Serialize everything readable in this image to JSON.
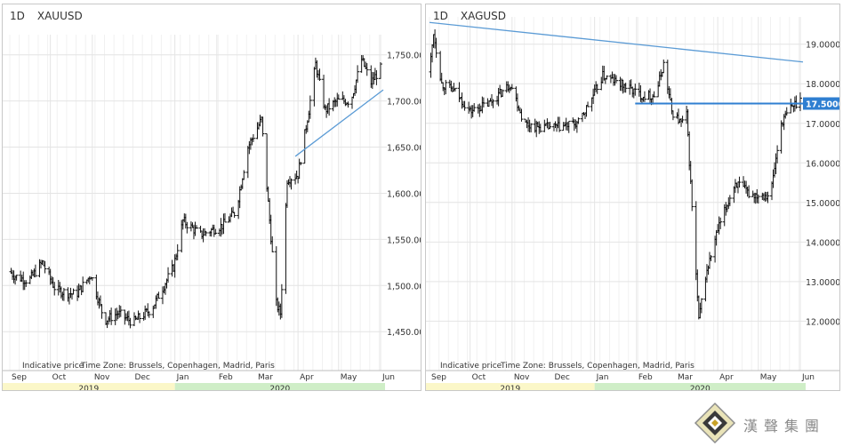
{
  "brand": {
    "name": "漢聲集團",
    "logo_icon": "diamond-logo-icon"
  },
  "chart_data": [
    {
      "type": "ohlc",
      "timeframe": "1D",
      "symbol": "XAUUSD",
      "footnote_price": "Indicative price",
      "footnote_tz": "Time Zone: Brussels, Copenhagen, Madrid, Paris",
      "ylim": [
        1430,
        1768
      ],
      "yticks": [
        1450,
        1500,
        1550,
        1600,
        1650,
        1700,
        1750
      ],
      "ytick_labels": [
        "1,450.00",
        "1,500.00",
        "1,550.00",
        "1,600.00",
        "1,650.00",
        "1,700.00",
        "1,750.00"
      ],
      "months": [
        "Sep",
        "Oct",
        "Nov",
        "Dec",
        "Jan",
        "Feb",
        "Mar",
        "Apr",
        "May",
        "Jun"
      ],
      "years": [
        "2019",
        "2020"
      ],
      "year_colors": [
        "#fbf7c8",
        "#cfeec7"
      ],
      "grid": true,
      "x_start": "2019-09-01",
      "x_end": "2020-06-03",
      "anchors": [
        [
          "2019-09-01",
          1515
        ],
        [
          "2019-09-05",
          1510
        ],
        [
          "2019-09-15",
          1505
        ],
        [
          "2019-09-25",
          1525
        ],
        [
          "2019-10-05",
          1495
        ],
        [
          "2019-10-20",
          1490
        ],
        [
          "2019-10-31",
          1512
        ],
        [
          "2019-11-10",
          1462
        ],
        [
          "2019-11-20",
          1470
        ],
        [
          "2019-12-01",
          1460
        ],
        [
          "2019-12-15",
          1475
        ],
        [
          "2019-12-31",
          1520
        ],
        [
          "2020-01-07",
          1570
        ],
        [
          "2020-01-20",
          1555
        ],
        [
          "2020-02-05",
          1565
        ],
        [
          "2020-02-15",
          1580
        ],
        [
          "2020-02-24",
          1650
        ],
        [
          "2020-03-05",
          1680
        ],
        [
          "2020-03-16",
          1480
        ],
        [
          "2020-03-19",
          1470
        ],
        [
          "2020-03-24",
          1615
        ],
        [
          "2020-04-01",
          1620
        ],
        [
          "2020-04-09",
          1690
        ],
        [
          "2020-04-14",
          1740
        ],
        [
          "2020-04-21",
          1690
        ],
        [
          "2020-04-30",
          1700
        ],
        [
          "2020-05-10",
          1700
        ],
        [
          "2020-05-18",
          1745
        ],
        [
          "2020-05-25",
          1720
        ],
        [
          "2020-06-01",
          1735
        ]
      ],
      "trendlines": [
        {
          "start": [
            "2020-03-30",
            1640
          ],
          "end": [
            "2020-06-03",
            1712
          ],
          "color": "#5b9bd5"
        }
      ]
    },
    {
      "type": "ohlc",
      "timeframe": "1D",
      "symbol": "XAGUSD",
      "footnote_price": "Indicative price",
      "footnote_tz": "Time Zone: Brussels, Copenhagen, Madrid, Paris",
      "ylim": [
        11.2,
        19.6
      ],
      "yticks": [
        12,
        13,
        14,
        15,
        16,
        17,
        18,
        19
      ],
      "ytick_labels": [
        "12.0000",
        "13.0000",
        "14.0000",
        "15.0000",
        "16.0000",
        "17.0000",
        "18.0000",
        "19.0000"
      ],
      "price_label": "17.5000",
      "price_level": 17.5,
      "months": [
        "Sep",
        "Oct",
        "Nov",
        "Dec",
        "Jan",
        "Feb",
        "Mar",
        "Apr",
        "May",
        "Jun"
      ],
      "years": [
        "2019",
        "2020"
      ],
      "year_colors": [
        "#fbf7c8",
        "#cfeec7"
      ],
      "grid": true,
      "x_start": "2019-09-01",
      "x_end": "2020-06-03",
      "anchors": [
        [
          "2019-09-01",
          18.3
        ],
        [
          "2019-09-04",
          19.3
        ],
        [
          "2019-09-10",
          18.0
        ],
        [
          "2019-09-20",
          17.8
        ],
        [
          "2019-10-01",
          17.3
        ],
        [
          "2019-10-15",
          17.5
        ],
        [
          "2019-10-31",
          18.0
        ],
        [
          "2019-11-10",
          17.0
        ],
        [
          "2019-11-20",
          16.9
        ],
        [
          "2019-12-05",
          16.9
        ],
        [
          "2019-12-20",
          17.0
        ],
        [
          "2019-12-31",
          17.7
        ],
        [
          "2020-01-07",
          18.2
        ],
        [
          "2020-01-20",
          18.0
        ],
        [
          "2020-02-05",
          17.7
        ],
        [
          "2020-02-15",
          17.7
        ],
        [
          "2020-02-21",
          18.5
        ],
        [
          "2020-02-27",
          17.3
        ],
        [
          "2020-03-05",
          17.0
        ],
        [
          "2020-03-09",
          17.2
        ],
        [
          "2020-03-18",
          12.0
        ],
        [
          "2020-03-22",
          13.0
        ],
        [
          "2020-04-01",
          14.3
        ],
        [
          "2020-04-14",
          15.5
        ],
        [
          "2020-04-25",
          15.2
        ],
        [
          "2020-05-10",
          15.2
        ],
        [
          "2020-05-18",
          17.0
        ],
        [
          "2020-05-25",
          17.4
        ],
        [
          "2020-06-01",
          17.6
        ]
      ],
      "trendlines": [
        {
          "start": [
            "2019-09-01",
            19.55
          ],
          "end": [
            "2020-06-03",
            18.55
          ],
          "color": "#5b9bd5"
        },
        {
          "start": [
            "2020-01-31",
            17.5
          ],
          "end": [
            "2020-06-03",
            17.5
          ],
          "color": "#2f7fd1"
        }
      ]
    }
  ]
}
